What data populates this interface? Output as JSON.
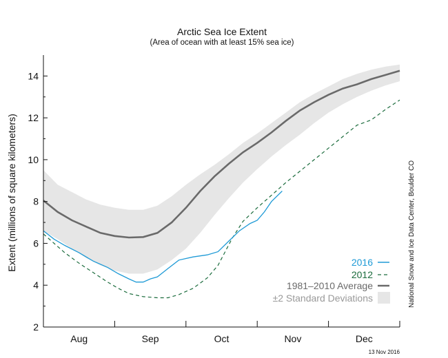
{
  "chart_data": {
    "type": "line",
    "title": "Arctic Sea Ice Extent",
    "subtitle": "(Area of ocean with at least 15% sea ice)",
    "ylabel": "Extent (millions of square kilometers)",
    "xlabel": "",
    "ylim": [
      2,
      15
    ],
    "yticks": [
      2,
      4,
      6,
      8,
      10,
      12,
      14
    ],
    "xlim": [
      0,
      5
    ],
    "month_labels": [
      "Aug",
      "Sep",
      "Oct",
      "Nov",
      "Dec"
    ],
    "grid": false,
    "legend_position": "bottom-right",
    "series": [
      {
        "name": "2016",
        "style": "solid",
        "color": "#1e9ad6",
        "points": [
          [
            0.0,
            6.6
          ],
          [
            0.15,
            6.2
          ],
          [
            0.3,
            5.9
          ],
          [
            0.5,
            5.55
          ],
          [
            0.7,
            5.15
          ],
          [
            0.9,
            4.85
          ],
          [
            1.05,
            4.55
          ],
          [
            1.2,
            4.3
          ],
          [
            1.3,
            4.15
          ],
          [
            1.4,
            4.15
          ],
          [
            1.5,
            4.3
          ],
          [
            1.6,
            4.4
          ],
          [
            1.75,
            4.8
          ],
          [
            1.9,
            5.2
          ],
          [
            2.1,
            5.35
          ],
          [
            2.3,
            5.45
          ],
          [
            2.45,
            5.6
          ],
          [
            2.6,
            6.1
          ],
          [
            2.75,
            6.6
          ],
          [
            2.9,
            6.95
          ],
          [
            3.0,
            7.1
          ],
          [
            3.1,
            7.5
          ],
          [
            3.2,
            8.0
          ],
          [
            3.35,
            8.5
          ]
        ]
      },
      {
        "name": "2012",
        "style": "dashed",
        "color": "#1a6b3c",
        "points": [
          [
            0.0,
            6.45
          ],
          [
            0.15,
            6.0
          ],
          [
            0.3,
            5.55
          ],
          [
            0.5,
            5.05
          ],
          [
            0.7,
            4.6
          ],
          [
            0.9,
            4.15
          ],
          [
            1.05,
            3.85
          ],
          [
            1.2,
            3.6
          ],
          [
            1.4,
            3.45
          ],
          [
            1.6,
            3.4
          ],
          [
            1.75,
            3.4
          ],
          [
            1.9,
            3.55
          ],
          [
            2.1,
            3.85
          ],
          [
            2.3,
            4.35
          ],
          [
            2.45,
            4.95
          ],
          [
            2.55,
            5.6
          ],
          [
            2.65,
            6.25
          ],
          [
            2.8,
            7.05
          ],
          [
            3.0,
            7.7
          ],
          [
            3.2,
            8.3
          ],
          [
            3.4,
            8.9
          ],
          [
            3.6,
            9.45
          ],
          [
            3.8,
            10.0
          ],
          [
            4.0,
            10.55
          ],
          [
            4.2,
            11.1
          ],
          [
            4.4,
            11.65
          ],
          [
            4.6,
            11.9
          ],
          [
            4.8,
            12.4
          ],
          [
            5.0,
            12.85
          ]
        ]
      },
      {
        "name": "1981–2010 Average",
        "style": "solid",
        "color": "#6a6a6a",
        "points": [
          [
            0.0,
            8.05
          ],
          [
            0.2,
            7.5
          ],
          [
            0.4,
            7.1
          ],
          [
            0.6,
            6.8
          ],
          [
            0.8,
            6.5
          ],
          [
            1.0,
            6.35
          ],
          [
            1.2,
            6.28
          ],
          [
            1.4,
            6.3
          ],
          [
            1.6,
            6.5
          ],
          [
            1.8,
            7.0
          ],
          [
            2.0,
            7.7
          ],
          [
            2.2,
            8.5
          ],
          [
            2.4,
            9.2
          ],
          [
            2.6,
            9.8
          ],
          [
            2.8,
            10.35
          ],
          [
            3.0,
            10.8
          ],
          [
            3.2,
            11.3
          ],
          [
            3.4,
            11.85
          ],
          [
            3.6,
            12.35
          ],
          [
            3.8,
            12.75
          ],
          [
            4.0,
            13.1
          ],
          [
            4.2,
            13.4
          ],
          [
            4.4,
            13.6
          ],
          [
            4.6,
            13.85
          ],
          [
            4.8,
            14.05
          ],
          [
            5.0,
            14.25
          ]
        ]
      },
      {
        "name": "±2 Standard Deviations",
        "style": "band",
        "color": "#e6e6e6",
        "upper": [
          [
            0.0,
            9.5
          ],
          [
            0.2,
            8.8
          ],
          [
            0.4,
            8.45
          ],
          [
            0.6,
            8.1
          ],
          [
            0.8,
            7.85
          ],
          [
            1.0,
            7.7
          ],
          [
            1.2,
            7.6
          ],
          [
            1.4,
            7.6
          ],
          [
            1.6,
            7.8
          ],
          [
            1.8,
            8.25
          ],
          [
            2.0,
            8.8
          ],
          [
            2.2,
            9.3
          ],
          [
            2.4,
            9.75
          ],
          [
            2.6,
            10.25
          ],
          [
            2.8,
            10.8
          ],
          [
            3.0,
            11.25
          ],
          [
            3.2,
            11.75
          ],
          [
            3.4,
            12.25
          ],
          [
            3.6,
            12.75
          ],
          [
            3.8,
            13.15
          ],
          [
            4.0,
            13.5
          ],
          [
            4.2,
            13.85
          ],
          [
            4.4,
            14.1
          ],
          [
            4.6,
            14.3
          ],
          [
            4.8,
            14.45
          ],
          [
            5.0,
            14.55
          ]
        ],
        "lower": [
          [
            0.0,
            6.6
          ],
          [
            0.2,
            6.2
          ],
          [
            0.4,
            5.75
          ],
          [
            0.6,
            5.3
          ],
          [
            0.8,
            4.95
          ],
          [
            1.0,
            4.7
          ],
          [
            1.2,
            4.55
          ],
          [
            1.4,
            4.55
          ],
          [
            1.6,
            4.75
          ],
          [
            1.8,
            5.2
          ],
          [
            2.0,
            5.75
          ],
          [
            2.2,
            6.5
          ],
          [
            2.4,
            7.35
          ],
          [
            2.6,
            8.15
          ],
          [
            2.8,
            8.9
          ],
          [
            3.0,
            9.55
          ],
          [
            3.2,
            10.15
          ],
          [
            3.4,
            10.7
          ],
          [
            3.6,
            11.2
          ],
          [
            3.8,
            11.75
          ],
          [
            4.0,
            12.25
          ],
          [
            4.2,
            12.65
          ],
          [
            4.4,
            13.0
          ],
          [
            4.6,
            13.3
          ],
          [
            4.8,
            13.55
          ],
          [
            5.0,
            13.75
          ]
        ]
      }
    ],
    "annotations": {
      "credit": "National Snow and Ice Data Center, Boulder CO",
      "date": "13 Nov 2016"
    }
  }
}
